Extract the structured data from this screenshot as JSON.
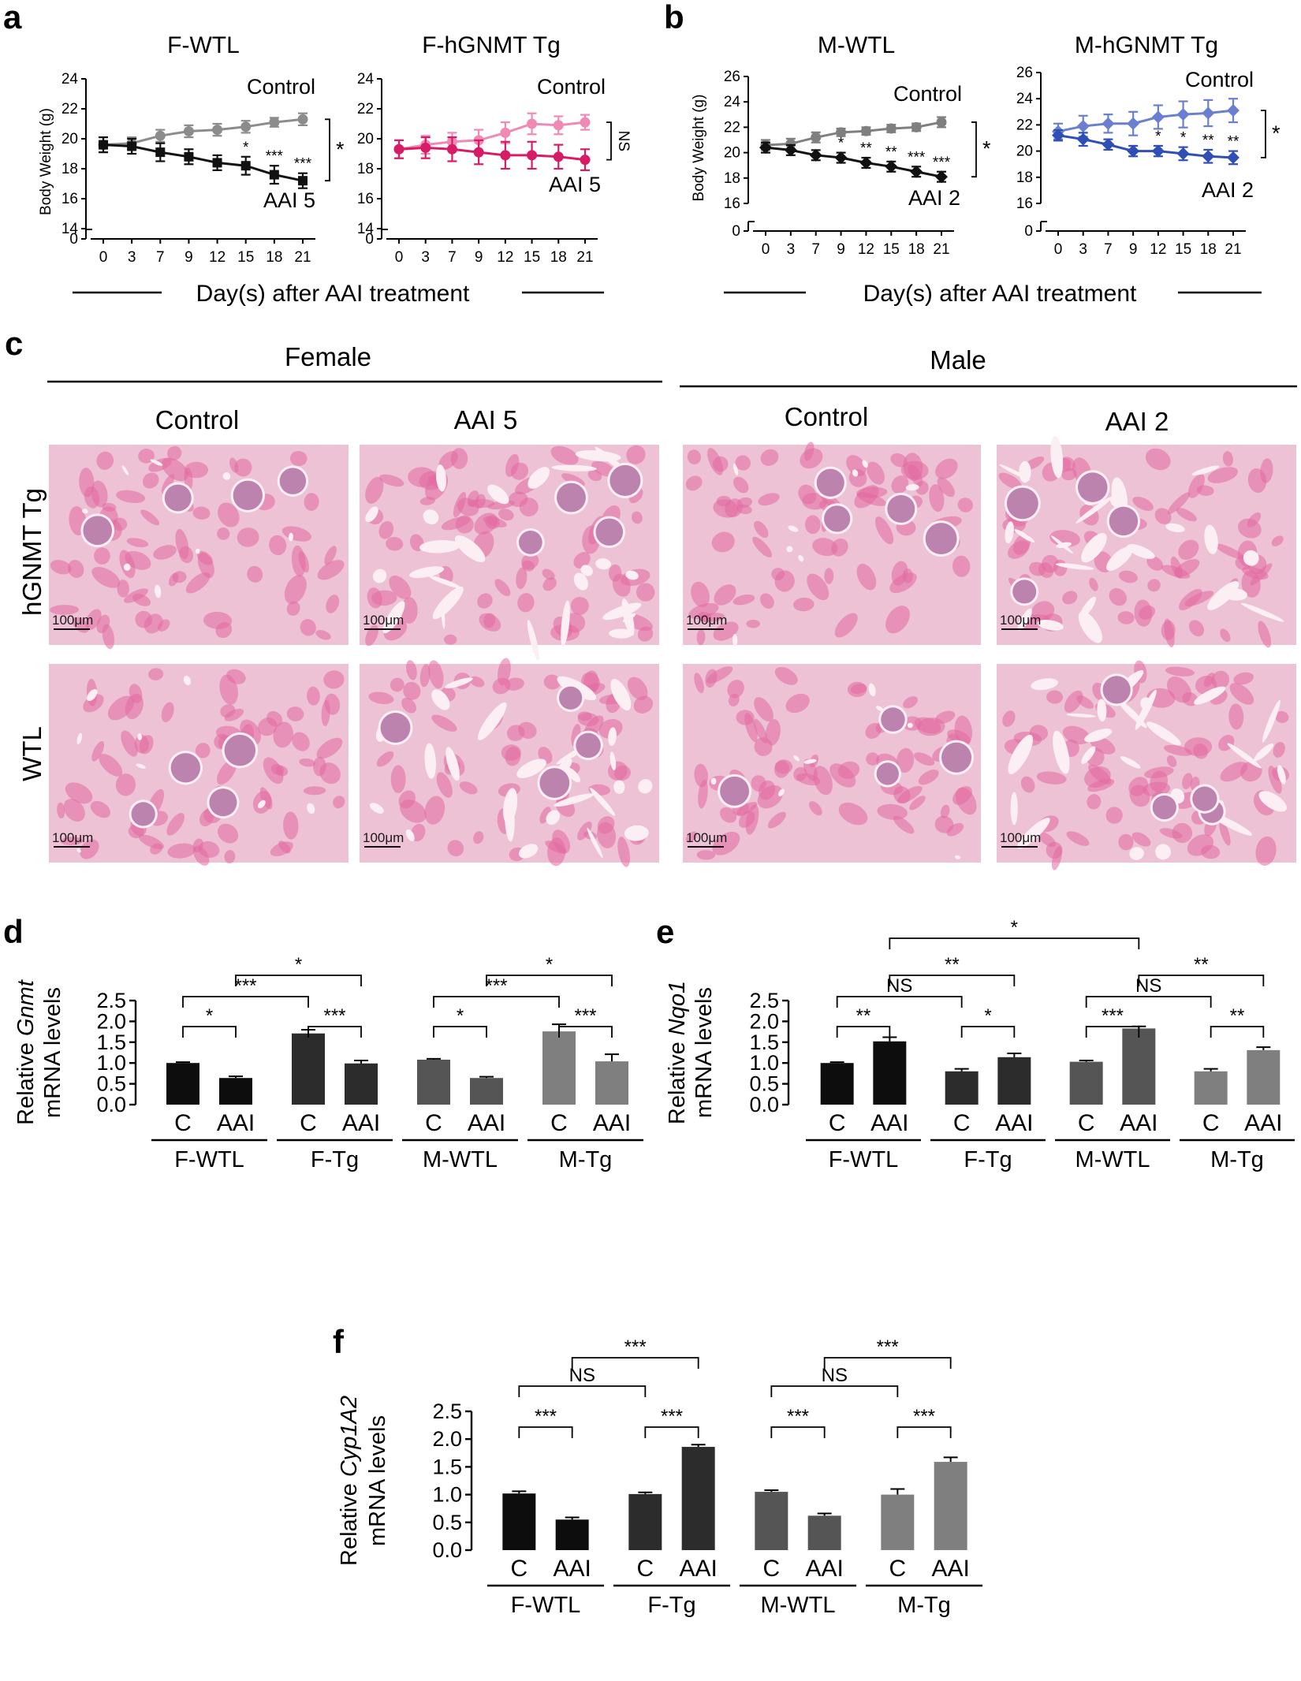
{
  "panels": {
    "a": {
      "letter": "a"
    },
    "b": {
      "letter": "b"
    },
    "c": {
      "letter": "c"
    },
    "d": {
      "letter": "d"
    },
    "e": {
      "letter": "e"
    },
    "f": {
      "letter": "f"
    }
  },
  "shared": {
    "weight_xlabel": "Day(s) after AAI treatment",
    "weight_ylabel": "Body Weight (g)"
  },
  "histology": {
    "female": "Female",
    "male": "Male",
    "columns": [
      "Control",
      "AAI 5",
      "Control",
      "AAI 2"
    ],
    "rows": [
      "hGNMT Tg",
      "WTL"
    ],
    "scale_bar": "100μm",
    "tissue_colors": {
      "background": "#ecc2d4",
      "tissue": "#e46aa0",
      "nuclei": "#8a2a76",
      "lumen": "#fbeff4"
    }
  },
  "chart_data": [
    {
      "id": "F-WTL",
      "type": "line",
      "title": "F-WTL",
      "x": [
        0,
        3,
        7,
        9,
        12,
        15,
        18,
        21
      ],
      "ylim": [
        14,
        24
      ],
      "yticks": [
        14,
        16,
        18,
        20,
        22,
        24
      ],
      "ylabel": "Body Weight (g)",
      "series": [
        {
          "name": "Control",
          "color": "#8c8c8c",
          "marker": "circle",
          "values": [
            19.6,
            19.7,
            20.2,
            20.5,
            20.6,
            20.8,
            21.1,
            21.3
          ],
          "err": [
            0.5,
            0.4,
            0.4,
            0.4,
            0.4,
            0.4,
            0.3,
            0.4
          ]
        },
        {
          "name": "AAI 5",
          "color": "#111111",
          "marker": "square",
          "values": [
            19.6,
            19.5,
            19.1,
            18.8,
            18.4,
            18.2,
            17.6,
            17.2
          ],
          "err": [
            0.5,
            0.5,
            0.6,
            0.5,
            0.5,
            0.6,
            0.6,
            0.5
          ]
        }
      ],
      "stars": [
        {
          "x": 15,
          "t": "*"
        },
        {
          "x": 18,
          "t": "***"
        },
        {
          "x": 21,
          "t": "***"
        }
      ],
      "bracket": "*"
    },
    {
      "id": "F-hGNMT Tg",
      "type": "line",
      "title": "F-hGNMT Tg",
      "x": [
        0,
        3,
        7,
        9,
        12,
        15,
        18,
        21
      ],
      "ylim": [
        14,
        24
      ],
      "yticks": [
        14,
        16,
        18,
        20,
        22,
        24
      ],
      "ylabel": "",
      "series": [
        {
          "name": "Control",
          "color": "#f08ab5",
          "marker": "circle",
          "values": [
            19.3,
            19.6,
            19.8,
            19.9,
            20.4,
            21.0,
            20.9,
            21.1
          ],
          "err": [
            0.6,
            0.6,
            0.6,
            0.7,
            0.7,
            0.7,
            0.6,
            0.5
          ]
        },
        {
          "name": "AAI 5",
          "color": "#d81b66",
          "marker": "circle",
          "values": [
            19.3,
            19.4,
            19.3,
            19.1,
            18.9,
            18.9,
            18.8,
            18.6
          ],
          "err": [
            0.6,
            0.7,
            0.8,
            0.8,
            0.9,
            0.9,
            0.8,
            0.7
          ]
        }
      ],
      "stars": [],
      "bracket": "NS"
    },
    {
      "id": "M-WTL",
      "type": "line",
      "title": "M-WTL",
      "x": [
        0,
        3,
        7,
        9,
        12,
        15,
        18,
        21
      ],
      "ylim": [
        16,
        26
      ],
      "yticks": [
        16,
        18,
        20,
        22,
        24,
        26
      ],
      "ylabel": "Body Weight (g)",
      "series": [
        {
          "name": "Control",
          "color": "#7f7f7f",
          "marker": "circle",
          "values": [
            20.6,
            20.7,
            21.2,
            21.6,
            21.7,
            21.9,
            22.0,
            22.4
          ],
          "err": [
            0.4,
            0.4,
            0.4,
            0.3,
            0.3,
            0.3,
            0.3,
            0.4
          ]
        },
        {
          "name": "AAI 2",
          "color": "#111111",
          "marker": "diamond",
          "values": [
            20.4,
            20.2,
            19.8,
            19.6,
            19.2,
            18.9,
            18.5,
            18.1
          ],
          "err": [
            0.4,
            0.4,
            0.4,
            0.4,
            0.4,
            0.4,
            0.4,
            0.4
          ]
        }
      ],
      "stars": [
        {
          "x": 9,
          "t": "*"
        },
        {
          "x": 12,
          "t": "**"
        },
        {
          "x": 15,
          "t": "**"
        },
        {
          "x": 18,
          "t": "***"
        },
        {
          "x": 21,
          "t": "***"
        }
      ],
      "bracket": "*"
    },
    {
      "id": "M-hGNMT Tg",
      "type": "line",
      "title": "M-hGNMT Tg",
      "x": [
        0,
        3,
        7,
        9,
        12,
        15,
        18,
        21
      ],
      "ylim": [
        16,
        26
      ],
      "yticks": [
        16,
        18,
        20,
        22,
        24,
        26
      ],
      "ylabel": "",
      "series": [
        {
          "name": "Control",
          "color": "#6a7fd0",
          "marker": "diamond",
          "values": [
            21.5,
            21.9,
            22.1,
            22.1,
            22.6,
            22.8,
            22.9,
            23.1
          ],
          "err": [
            0.6,
            0.8,
            0.7,
            0.9,
            0.9,
            1.0,
            1.0,
            0.9
          ]
        },
        {
          "name": "AAI 2",
          "color": "#2f4fb5",
          "marker": "diamond",
          "values": [
            21.2,
            20.9,
            20.5,
            20.0,
            20.0,
            19.8,
            19.6,
            19.5
          ],
          "err": [
            0.4,
            0.5,
            0.4,
            0.4,
            0.4,
            0.5,
            0.5,
            0.5
          ]
        }
      ],
      "stars": [
        {
          "x": 12,
          "t": "*"
        },
        {
          "x": 15,
          "t": "*"
        },
        {
          "x": 18,
          "t": "**"
        },
        {
          "x": 21,
          "t": "**"
        }
      ],
      "bracket": "*"
    },
    {
      "id": "Gnmt",
      "type": "bar",
      "ylabel_pre": "Relative ",
      "ylabel_gene": "Gnmt",
      "ylabel2": "mRNA levels",
      "ylim": [
        0,
        2.5
      ],
      "yticks": [
        0.0,
        0.5,
        1.0,
        1.5,
        2.0,
        2.5
      ],
      "categories": [
        "C",
        "AAI",
        "C",
        "AAI",
        "C",
        "AAI",
        "C",
        "AAI"
      ],
      "groups": [
        "F-WTL",
        "F-Tg",
        "M-WTL",
        "M-Tg"
      ],
      "values": [
        1.0,
        0.64,
        1.71,
        0.99,
        1.08,
        0.64,
        1.76,
        1.04
      ],
      "err": [
        0.02,
        0.04,
        0.09,
        0.07,
        0.02,
        0.03,
        0.17,
        0.17
      ],
      "colors": [
        "#0d0d0d",
        "#0d0d0d",
        "#2c2c2c",
        "#2c2c2c",
        "#555555",
        "#555555",
        "#7f7f7f",
        "#7f7f7f"
      ],
      "brackets": [
        {
          "a": 0,
          "b": 1,
          "t": "*"
        },
        {
          "a": 2,
          "b": 3,
          "t": "***"
        },
        {
          "a": 4,
          "b": 5,
          "t": "*"
        },
        {
          "a": 6,
          "b": 7,
          "t": "***"
        },
        {
          "a": 0,
          "b": 2,
          "t": "***"
        },
        {
          "a": 4,
          "b": 6,
          "t": "***"
        },
        {
          "a": 1,
          "b": 3,
          "t": "*"
        },
        {
          "a": 5,
          "b": 7,
          "t": "*"
        }
      ]
    },
    {
      "id": "Nqo1",
      "type": "bar",
      "ylabel_pre": "Relative ",
      "ylabel_gene": "Nqo1",
      "ylabel2": "mRNA levels",
      "ylim": [
        0,
        2.5
      ],
      "yticks": [
        0.0,
        0.5,
        1.0,
        1.5,
        2.0,
        2.5
      ],
      "categories": [
        "C",
        "AAI",
        "C",
        "AAI",
        "C",
        "AAI",
        "C",
        "AAI"
      ],
      "groups": [
        "F-WTL",
        "F-Tg",
        "M-WTL",
        "M-Tg"
      ],
      "values": [
        1.0,
        1.52,
        0.8,
        1.14,
        1.03,
        1.83,
        0.8,
        1.31
      ],
      "err": [
        0.02,
        0.1,
        0.06,
        0.09,
        0.03,
        0.05,
        0.06,
        0.07
      ],
      "colors": [
        "#0d0d0d",
        "#0d0d0d",
        "#2c2c2c",
        "#2c2c2c",
        "#555555",
        "#555555",
        "#7f7f7f",
        "#7f7f7f"
      ],
      "brackets": [
        {
          "a": 0,
          "b": 1,
          "t": "**"
        },
        {
          "a": 2,
          "b": 3,
          "t": "*"
        },
        {
          "a": 4,
          "b": 5,
          "t": "***"
        },
        {
          "a": 6,
          "b": 7,
          "t": "**"
        },
        {
          "a": 0,
          "b": 2,
          "t": "NS"
        },
        {
          "a": 4,
          "b": 6,
          "t": "NS"
        },
        {
          "a": 1,
          "b": 3,
          "t": "**"
        },
        {
          "a": 5,
          "b": 7,
          "t": "**"
        },
        {
          "a": 1,
          "b": 5,
          "t": "*"
        }
      ]
    },
    {
      "id": "Cyp1A2",
      "type": "bar",
      "ylabel_pre": "Relative ",
      "ylabel_gene": "Cyp1A2",
      "ylabel2": "mRNA levels",
      "ylim": [
        0,
        2.5
      ],
      "yticks": [
        0.0,
        0.5,
        1.0,
        1.5,
        2.0,
        2.5
      ],
      "categories": [
        "C",
        "AAI",
        "C",
        "AAI",
        "C",
        "AAI",
        "C",
        "AAI"
      ],
      "groups": [
        "F-WTL",
        "F-Tg",
        "M-WTL",
        "M-Tg"
      ],
      "values": [
        1.02,
        0.55,
        1.01,
        1.86,
        1.05,
        0.62,
        1.0,
        1.59
      ],
      "err": [
        0.04,
        0.04,
        0.03,
        0.04,
        0.03,
        0.04,
        0.1,
        0.08
      ],
      "colors": [
        "#0d0d0d",
        "#0d0d0d",
        "#2c2c2c",
        "#2c2c2c",
        "#555555",
        "#555555",
        "#7f7f7f",
        "#7f7f7f"
      ],
      "brackets": [
        {
          "a": 0,
          "b": 1,
          "t": "***"
        },
        {
          "a": 2,
          "b": 3,
          "t": "***"
        },
        {
          "a": 4,
          "b": 5,
          "t": "***"
        },
        {
          "a": 6,
          "b": 7,
          "t": "***"
        },
        {
          "a": 0,
          "b": 2,
          "t": "NS"
        },
        {
          "a": 4,
          "b": 6,
          "t": "NS"
        },
        {
          "a": 1,
          "b": 3,
          "t": "***"
        },
        {
          "a": 5,
          "b": 7,
          "t": "***"
        }
      ]
    }
  ]
}
